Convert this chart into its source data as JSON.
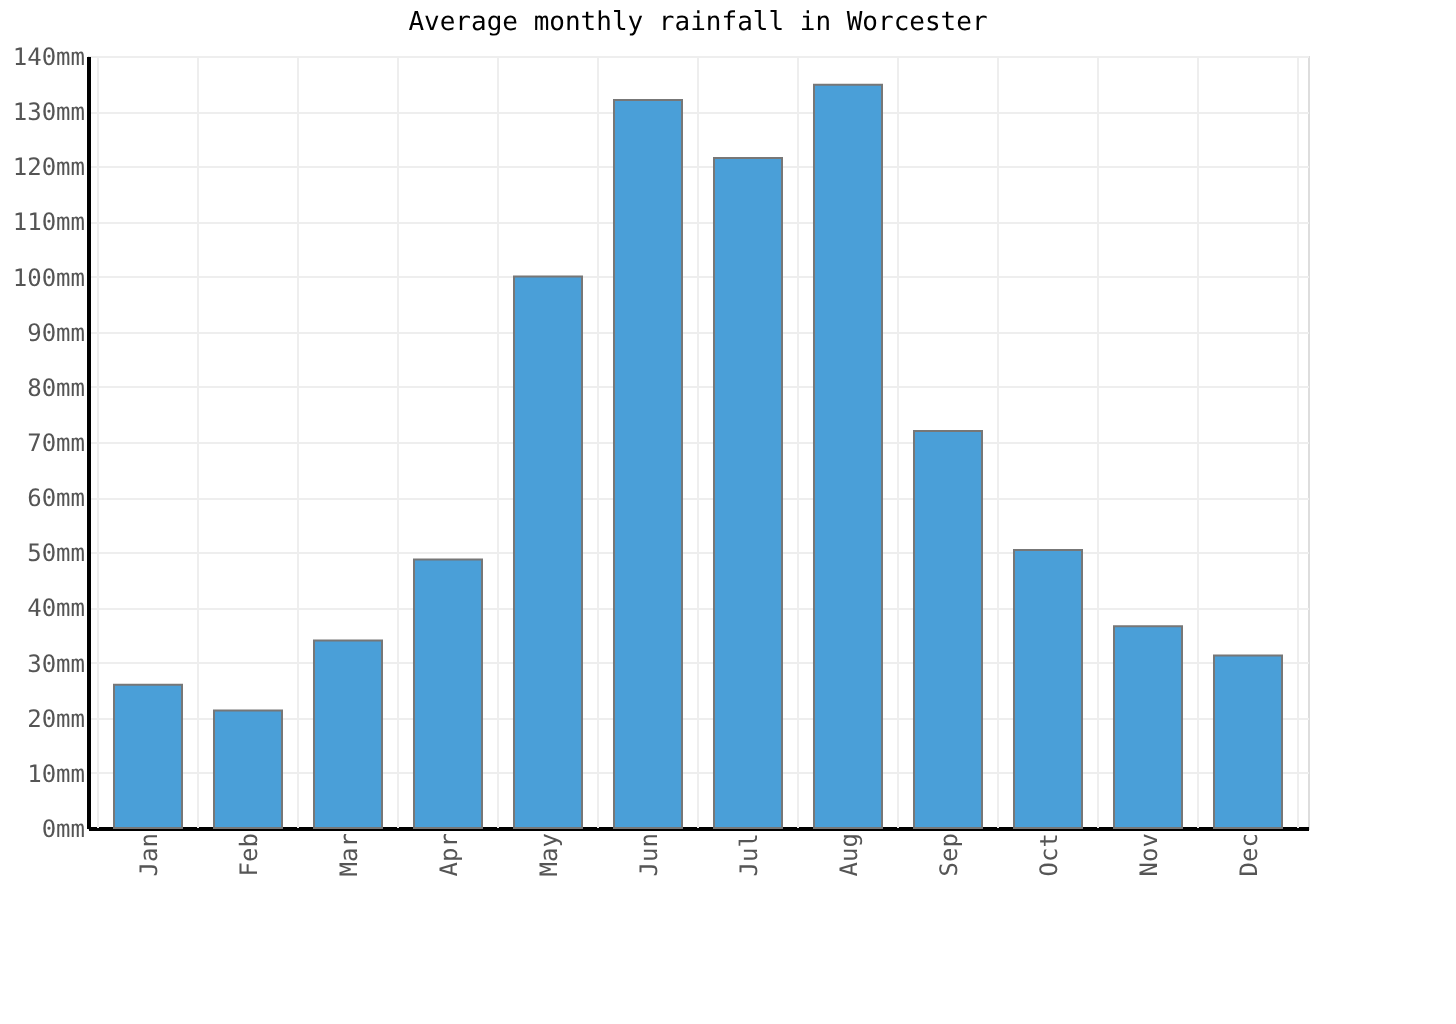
{
  "chart_data": {
    "type": "bar",
    "title": "Average monthly rainfall in Worcester",
    "categories": [
      "Jan",
      "Feb",
      "Mar",
      "Apr",
      "May",
      "Jun",
      "Jul",
      "Aug",
      "Sep",
      "Oct",
      "Nov",
      "Dec"
    ],
    "values": [
      26,
      21.3,
      34,
      48.7,
      100,
      132,
      121.5,
      134.8,
      72,
      50.4,
      36.6,
      31.3
    ],
    "color": "#4a9fd8",
    "ylim": [
      0,
      140
    ],
    "yticks": [
      {
        "value": 0,
        "label": "0mm"
      },
      {
        "value": 10,
        "label": "10mm"
      },
      {
        "value": 20,
        "label": "20mm"
      },
      {
        "value": 30,
        "label": "30mm"
      },
      {
        "value": 40,
        "label": "40mm"
      },
      {
        "value": 50,
        "label": "50mm"
      },
      {
        "value": 60,
        "label": "60mm"
      },
      {
        "value": 70,
        "label": "70mm"
      },
      {
        "value": 80,
        "label": "80mm"
      },
      {
        "value": 90,
        "label": "90mm"
      },
      {
        "value": 100,
        "label": "100mm"
      },
      {
        "value": 110,
        "label": "110mm"
      },
      {
        "value": 120,
        "label": "120mm"
      },
      {
        "value": 130,
        "label": "130mm"
      },
      {
        "value": 140,
        "label": "140mm"
      }
    ],
    "grid": true
  }
}
